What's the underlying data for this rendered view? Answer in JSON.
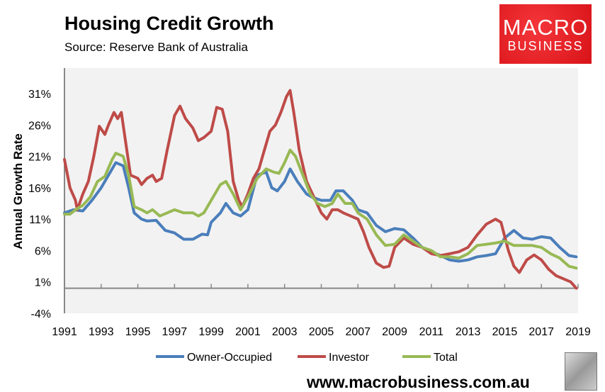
{
  "chart_data": {
    "type": "line",
    "title": "Housing Credit Growth",
    "subtitle": "Source: Reserve Bank of Australia",
    "ylabel": "Annual Growth Rate",
    "xlabel": "",
    "ylim": [
      -4,
      35
    ],
    "xlim": [
      1991,
      2019
    ],
    "yticks": [
      31,
      26,
      21,
      16,
      11,
      6,
      1,
      -4
    ],
    "ytick_labels": [
      "31%",
      "26%",
      "21%",
      "16%",
      "11%",
      "6%",
      "1%",
      "-4%"
    ],
    "xticks": [
      1991,
      1993,
      1995,
      1997,
      1999,
      2001,
      2003,
      2005,
      2007,
      2009,
      2011,
      2013,
      2015,
      2017,
      2019
    ],
    "xtick_labels": [
      "1991",
      "1993",
      "1995",
      "1997",
      "1999",
      "2001",
      "2003",
      "2005",
      "2007",
      "2009",
      "2011",
      "2013",
      "2015",
      "2017",
      "2019"
    ],
    "grid": false,
    "legend_position": "bottom",
    "series": [
      {
        "name": "Owner-Occupied",
        "color": "#4a7ebb",
        "x": [
          1991,
          1991.5,
          1992,
          1992.5,
          1993,
          1993.5,
          1993.8,
          1994.2,
          1994.5,
          1994.8,
          1995.2,
          1995.5,
          1996,
          1996.5,
          1997,
          1997.5,
          1998,
          1998.5,
          1998.8,
          1999,
          1999.5,
          1999.8,
          2000.2,
          2000.6,
          2001,
          2001.5,
          2002,
          2002.3,
          2002.6,
          2003,
          2003.3,
          2003.7,
          2004.2,
          2004.5,
          2005,
          2005.5,
          2005.8,
          2006.2,
          2006.7,
          2007,
          2007.5,
          2008,
          2008.5,
          2009,
          2009.5,
          2010,
          2010.5,
          2011,
          2011.5,
          2012,
          2012.5,
          2013,
          2013.5,
          2014,
          2014.5,
          2015,
          2015.5,
          2016,
          2016.5,
          2017,
          2017.5,
          2018,
          2018.5,
          2018.9
        ],
        "y": [
          12,
          12.5,
          12.3,
          14,
          16,
          18.5,
          20,
          19.5,
          16,
          12,
          11,
          10.7,
          10.8,
          9.2,
          8.8,
          7.8,
          7.8,
          8.6,
          8.5,
          10.5,
          12,
          13.5,
          12,
          11.5,
          12.5,
          18,
          18.5,
          16,
          15.5,
          17,
          19,
          17,
          15,
          14.5,
          14,
          14,
          15.5,
          15.5,
          14,
          12.5,
          12,
          10,
          9,
          9.5,
          9.3,
          8,
          6.5,
          5.8,
          5.2,
          4.5,
          4.3,
          4.5,
          5,
          5.2,
          5.5,
          8,
          9.2,
          8,
          7.8,
          8.2,
          8,
          6.5,
          5.2,
          5
        ]
      },
      {
        "name": "Investor",
        "color": "#be4b48",
        "x": [
          1991,
          1991.3,
          1991.6,
          1991.7,
          1992,
          1992.3,
          1992.6,
          1992.9,
          1993.2,
          1993.4,
          1993.7,
          1993.9,
          1994.1,
          1994.4,
          1994.6,
          1995,
          1995.2,
          1995.5,
          1995.8,
          1996,
          1996.3,
          1996.6,
          1997,
          1997.3,
          1997.6,
          1998,
          1998.3,
          1998.6,
          1999,
          1999.3,
          1999.6,
          1999.9,
          2000.2,
          2000.5,
          2000.7,
          2001,
          2001.3,
          2001.6,
          2001.9,
          2002.2,
          2002.5,
          2002.8,
          2003.1,
          2003.3,
          2003.5,
          2003.8,
          2004.2,
          2004.6,
          2005,
          2005.3,
          2005.6,
          2005.9,
          2006.2,
          2006.6,
          2007,
          2007.3,
          2007.6,
          2008,
          2008.4,
          2008.7,
          2009,
          2009.5,
          2010,
          2010.5,
          2011,
          2011.5,
          2012,
          2012.5,
          2013,
          2013.5,
          2014,
          2014.5,
          2014.8,
          2015.2,
          2015.5,
          2015.8,
          2016.2,
          2016.6,
          2017,
          2017.4,
          2017.8,
          2018.2,
          2018.6,
          2018.9
        ],
        "y": [
          20.5,
          16,
          14,
          12.5,
          15,
          17,
          21,
          25.8,
          24.5,
          26,
          28,
          27,
          28,
          22,
          18,
          17.5,
          16.5,
          17.5,
          18,
          17,
          17.5,
          22,
          27.5,
          29,
          27,
          25.5,
          23.5,
          24,
          25,
          28.8,
          28.5,
          25,
          17,
          14,
          13,
          15,
          17.5,
          19,
          22,
          25,
          26,
          28,
          30.5,
          31.5,
          28,
          22,
          17,
          14.5,
          12,
          11,
          12.5,
          12.5,
          12,
          11.5,
          11,
          9,
          6.5,
          4,
          3.3,
          3.5,
          6.5,
          8,
          7,
          6.5,
          5.5,
          5.2,
          5.5,
          5.8,
          6.5,
          8.5,
          10.2,
          11,
          10.5,
          6,
          3.5,
          2.5,
          4.5,
          5.3,
          4.5,
          3,
          2,
          1.5,
          1,
          0
        ]
      },
      {
        "name": "Total",
        "color": "#98b954",
        "x": [
          1991,
          1991.3,
          1991.6,
          1992,
          1992.4,
          1992.8,
          1993.2,
          1993.6,
          1993.8,
          1994.2,
          1994.5,
          1994.8,
          1995.2,
          1995.5,
          1995.8,
          1996.2,
          1996.6,
          1997,
          1997.5,
          1998,
          1998.3,
          1998.6,
          1999,
          1999.5,
          1999.8,
          2000.2,
          2000.6,
          2001,
          2001.5,
          2002,
          2002.4,
          2002.7,
          2003,
          2003.3,
          2003.6,
          2004,
          2004.4,
          2004.8,
          2005.2,
          2005.6,
          2005.9,
          2006.3,
          2006.7,
          2007,
          2007.5,
          2008,
          2008.5,
          2009,
          2009.5,
          2010,
          2010.5,
          2011,
          2011.5,
          2012,
          2012.5,
          2013,
          2013.5,
          2014,
          2014.5,
          2015,
          2015.5,
          2016,
          2016.5,
          2017,
          2017.5,
          2018,
          2018.5,
          2018.9
        ],
        "y": [
          11.8,
          11.8,
          12.5,
          13.2,
          14.5,
          17,
          17.8,
          20.5,
          21.5,
          21,
          18,
          13,
          12.5,
          12,
          12.5,
          11.5,
          12,
          12.5,
          12,
          12,
          11.5,
          12,
          14,
          16.5,
          17,
          15,
          12.5,
          14.5,
          17.5,
          19,
          18.5,
          18.3,
          20,
          22,
          21,
          18,
          15,
          13.5,
          13,
          13.5,
          15,
          13.5,
          13.5,
          12,
          11,
          8.5,
          6.8,
          7,
          8.5,
          7.5,
          6.5,
          6,
          5,
          5,
          4.8,
          5.5,
          6.8,
          7,
          7.2,
          7.5,
          6.8,
          6.8,
          6.8,
          6.5,
          5.5,
          4.8,
          3.5,
          3.2
        ]
      }
    ]
  },
  "branding": {
    "logo_line1": "MACRO",
    "logo_line2": "BUSINESS",
    "website": "www.macrobusiness.com.au"
  }
}
